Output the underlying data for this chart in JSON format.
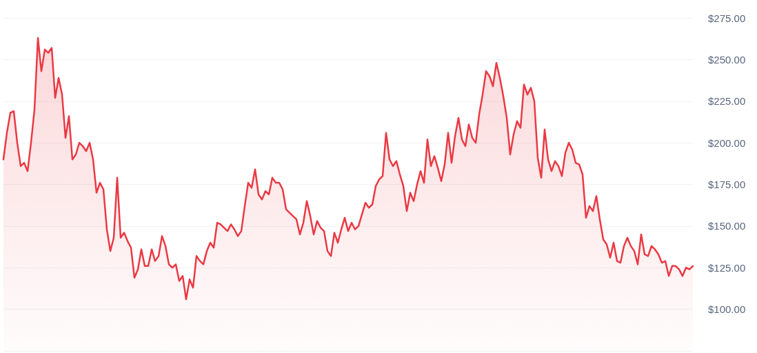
{
  "chart_data": {
    "type": "area",
    "categories": [
      null,
      null,
      null,
      null,
      null,
      null,
      null,
      null,
      null,
      null,
      null,
      null,
      null,
      null,
      null,
      null,
      null,
      null,
      null,
      null,
      null,
      null,
      null,
      null,
      null,
      null,
      null,
      null,
      null,
      null,
      null,
      null,
      null,
      null,
      null,
      null,
      null,
      null,
      null,
      null,
      null,
      null,
      null,
      null,
      null,
      null,
      null,
      null,
      null,
      null,
      null,
      null,
      null,
      null,
      null,
      null,
      null,
      null,
      null,
      null,
      null,
      null,
      null,
      null,
      null,
      null,
      null,
      null,
      null,
      null,
      null,
      null,
      null,
      null,
      null,
      null,
      null,
      null,
      null,
      null,
      null,
      null,
      null,
      null,
      null,
      null,
      null,
      null,
      null,
      null,
      null,
      null,
      null,
      null,
      null,
      null,
      null,
      null,
      null,
      null,
      null,
      null,
      null,
      null,
      null,
      null,
      null,
      null,
      null,
      null,
      null,
      null,
      null,
      null,
      null,
      null,
      null,
      null,
      null,
      null,
      null,
      null,
      null,
      null,
      null,
      null,
      null,
      null,
      null,
      null,
      null,
      null,
      null,
      null,
      null,
      null,
      null,
      null,
      null,
      null,
      null,
      null,
      null,
      null,
      null,
      null,
      null,
      null,
      null,
      null,
      null,
      null,
      null,
      null,
      null,
      null,
      null,
      null,
      null,
      null,
      null,
      null,
      null,
      null,
      null,
      null,
      null,
      null,
      null,
      null,
      null,
      null,
      null,
      null,
      null,
      null,
      null,
      null,
      null,
      null,
      null,
      null,
      null,
      null,
      null,
      null,
      null,
      null,
      null,
      null,
      null,
      null,
      null,
      null,
      null,
      null,
      null,
      null,
      null,
      null,
      null
    ],
    "values": [
      190,
      206,
      218,
      219,
      200,
      186,
      188,
      183,
      200,
      220,
      263,
      243,
      256,
      254,
      257,
      227,
      239,
      229,
      203,
      216,
      190,
      193,
      200,
      198,
      195,
      200,
      190,
      170,
      176,
      172,
      148,
      135,
      143,
      179,
      143,
      146,
      141,
      137,
      119,
      124,
      136,
      126,
      126,
      136,
      129,
      132,
      144,
      138,
      127,
      125,
      127,
      117,
      120,
      106,
      118,
      113,
      132,
      129,
      127,
      135,
      140,
      137,
      152,
      151,
      149,
      147,
      151,
      148,
      144,
      147,
      162,
      176,
      173,
      184,
      169,
      166,
      171,
      169,
      179,
      176,
      176,
      172,
      160,
      158,
      156,
      154,
      145,
      152,
      165,
      156,
      145,
      153,
      149,
      147,
      135,
      132,
      146,
      140,
      148,
      155,
      147,
      152,
      148,
      150,
      157,
      164,
      161,
      163,
      174,
      178,
      180,
      206,
      190,
      186,
      189,
      181,
      174,
      159,
      170,
      165,
      175,
      183,
      176,
      202,
      186,
      192,
      185,
      177,
      187,
      206,
      188,
      204,
      215,
      202,
      198,
      211,
      203,
      200,
      217,
      229,
      243,
      240,
      234,
      248,
      239,
      228,
      215,
      193,
      205,
      213,
      209,
      235,
      229,
      233,
      225,
      191,
      179,
      208,
      190,
      183,
      189,
      186,
      180,
      194,
      200,
      196,
      188,
      187,
      181,
      155,
      162,
      159,
      168,
      154,
      142,
      139,
      131,
      140,
      129,
      128,
      138,
      143,
      138,
      135,
      127,
      145,
      133,
      132,
      138,
      136,
      133,
      128,
      129,
      120,
      126,
      126,
      124,
      120,
      125,
      124,
      126
    ],
    "color": "#ea3943",
    "ylim": [
      75,
      275
    ],
    "yticks": [
      {
        "value": 75,
        "label": null
      },
      {
        "value": 100,
        "label": "$100.00"
      },
      {
        "value": 125,
        "label": "$125.00"
      },
      {
        "value": 150,
        "label": "$150.00"
      },
      {
        "value": 175,
        "label": "$175.00"
      },
      {
        "value": 200,
        "label": "$200.00"
      },
      {
        "value": 225,
        "label": "$225.00"
      },
      {
        "value": 250,
        "label": "$250.00"
      },
      {
        "value": 275,
        "label": "$275.00"
      }
    ],
    "grid": "y",
    "tick_labels": "y",
    "line_style": "solid"
  }
}
